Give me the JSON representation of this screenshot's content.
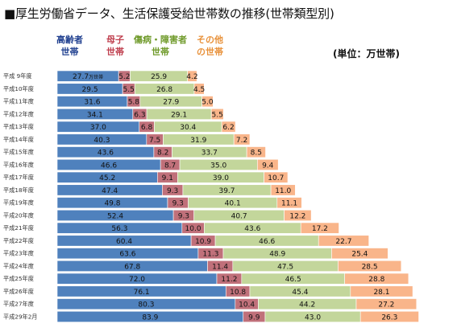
{
  "title": "■厚生労働省データ、生活保護受給世帯数の推移(世帯類型別)",
  "unit_label": "(単位：万世帯)",
  "colors": {
    "elderly": "#4f81bd",
    "single_mother": "#c0707a",
    "disabled": "#c3d69b",
    "other": "#f9b58a"
  },
  "legend": [
    {
      "line1": "高齢者",
      "line2": "世帯",
      "color": "#1f3f8f"
    },
    {
      "line1": "母子",
      "line2": "世帯",
      "color": "#c0404f"
    },
    {
      "line1": "傷病・障害者",
      "line2": "世帯",
      "color": "#6f9a2a"
    },
    {
      "line1": "その他",
      "line2": "の世帯",
      "color": "#e8913a"
    }
  ],
  "chart_data": {
    "type": "bar",
    "orientation": "horizontal",
    "stacked": true,
    "categories": [
      "平成 9年度",
      "平成10年度",
      "平成11年度",
      "平成12年度",
      "平成13年度",
      "平成14年度",
      "平成15年度",
      "平成16年度",
      "平成17年度",
      "平成18年度",
      "平成19年度",
      "平成20年度",
      "平成21年度",
      "平成22年度",
      "平成23年度",
      "平成24年度",
      "平成25年度",
      "平成26年度",
      "平成27年度",
      "平成29年2月"
    ],
    "series": [
      {
        "name": "高齢者世帯",
        "values": [
          27.7,
          29.5,
          31.6,
          34.1,
          37.0,
          40.3,
          43.6,
          46.6,
          45.2,
          47.4,
          49.8,
          52.4,
          56.3,
          60.4,
          63.6,
          67.8,
          72.0,
          76.1,
          80.3,
          83.9
        ]
      },
      {
        "name": "母子世帯",
        "values": [
          5.2,
          5.5,
          5.8,
          6.3,
          6.8,
          7.5,
          8.2,
          8.7,
          9.1,
          9.3,
          9.3,
          9.3,
          10.0,
          10.9,
          11.3,
          11.4,
          11.2,
          10.8,
          10.4,
          9.9
        ]
      },
      {
        "name": "傷病・障害者世帯",
        "values": [
          25.9,
          26.8,
          27.9,
          29.1,
          30.4,
          31.9,
          33.7,
          35.0,
          39.0,
          39.7,
          40.1,
          40.7,
          43.6,
          46.6,
          48.9,
          47.5,
          46.5,
          45.4,
          44.2,
          43.0
        ]
      },
      {
        "name": "その他の世帯",
        "values": [
          4.2,
          4.5,
          5.0,
          5.5,
          6.2,
          7.2,
          8.5,
          9.4,
          10.7,
          11.0,
          11.1,
          12.2,
          17.2,
          22.7,
          25.4,
          28.5,
          28.8,
          28.1,
          27.2,
          26.3
        ]
      }
    ],
    "first_label_suffix": "万世帯"
  }
}
